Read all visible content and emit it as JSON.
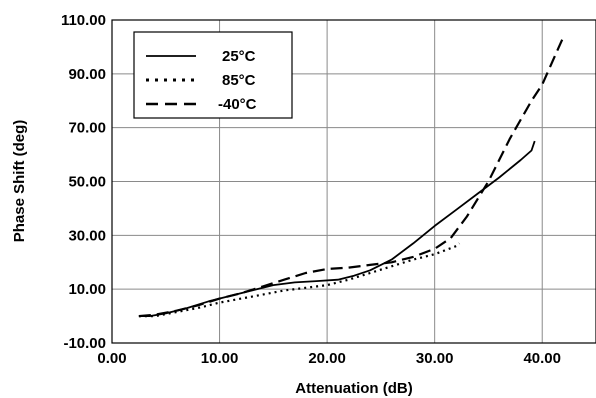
{
  "chart_data": {
    "type": "line",
    "title": "",
    "xlabel": "Attenuation (dB)",
    "ylabel": "Phase Shift (deg)",
    "xlim": [
      0,
      45
    ],
    "ylim": [
      -10,
      110
    ],
    "x_ticks": [
      "0.00",
      "10.00",
      "20.00",
      "30.00",
      "40.00"
    ],
    "x_tick_values": [
      0,
      10,
      20,
      30,
      40
    ],
    "y_ticks": [
      "-10.00",
      "10.00",
      "30.00",
      "50.00",
      "70.00",
      "90.00",
      "110.00"
    ],
    "y_tick_values": [
      -10,
      10,
      30,
      50,
      70,
      90,
      110
    ],
    "grid": true,
    "legend_position": "top-left",
    "series": [
      {
        "name": "25°C",
        "style": "solid",
        "points": [
          [
            2.5,
            0
          ],
          [
            3.5,
            0
          ],
          [
            5,
            1
          ],
          [
            7,
            3
          ],
          [
            9,
            5.5
          ],
          [
            11,
            7.5
          ],
          [
            13,
            9.5
          ],
          [
            15,
            11.5
          ],
          [
            17,
            12.5
          ],
          [
            19,
            13
          ],
          [
            21,
            13.5
          ],
          [
            22.5,
            15
          ],
          [
            24,
            17
          ],
          [
            26,
            21
          ],
          [
            28,
            27
          ],
          [
            30,
            33.5
          ],
          [
            32,
            39.5
          ],
          [
            34,
            45.5
          ],
          [
            36,
            51.5
          ],
          [
            38,
            58
          ],
          [
            39,
            61.5
          ],
          [
            39.3,
            65
          ]
        ]
      },
      {
        "name": "85°C",
        "style": "dotted",
        "points": [
          [
            2.5,
            0
          ],
          [
            4,
            0
          ],
          [
            6,
            1.5
          ],
          [
            8,
            3
          ],
          [
            10,
            5
          ],
          [
            12,
            6.5
          ],
          [
            14,
            8
          ],
          [
            16,
            9.5
          ],
          [
            18,
            10.5
          ],
          [
            20,
            11.5
          ],
          [
            22,
            13.5
          ],
          [
            24,
            16
          ],
          [
            26,
            18.5
          ],
          [
            28,
            21
          ],
          [
            30,
            23
          ],
          [
            32,
            26
          ],
          [
            32.3,
            27
          ]
        ]
      },
      {
        "name": "-40°C",
        "style": "dashed",
        "points": [
          [
            2.5,
            0
          ],
          [
            4,
            0.5
          ],
          [
            6,
            2
          ],
          [
            8,
            4
          ],
          [
            10,
            6.5
          ],
          [
            12,
            8.5
          ],
          [
            14,
            11
          ],
          [
            16,
            13.5
          ],
          [
            18,
            16
          ],
          [
            20,
            17.5
          ],
          [
            22,
            18
          ],
          [
            24,
            19
          ],
          [
            26,
            20
          ],
          [
            28,
            22
          ],
          [
            30,
            25
          ],
          [
            31.5,
            29
          ],
          [
            33,
            37
          ],
          [
            35,
            50
          ],
          [
            37,
            66
          ],
          [
            39,
            80
          ],
          [
            40,
            86
          ],
          [
            42,
            104
          ]
        ]
      }
    ]
  }
}
